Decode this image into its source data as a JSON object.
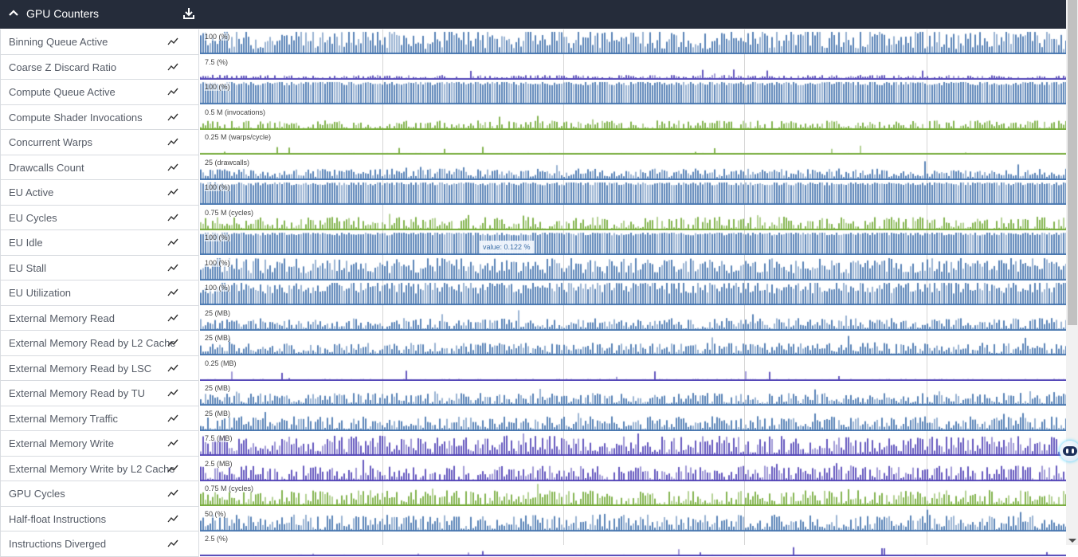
{
  "header": {
    "title": "GPU Counters",
    "collapse_icon": "chevron-up-icon",
    "download_icon": "download-icon"
  },
  "colors": {
    "blue": "#4a78b0",
    "purple": "#5548b8",
    "green": "#78ad3e",
    "header_bg": "#252c3a"
  },
  "tooltip": {
    "text": "value: 0.122 %"
  },
  "counters": [
    {
      "name": "Binning Queue Active",
      "scale": "100  (%)",
      "color": "blue",
      "level": 0.65,
      "var": 0.45
    },
    {
      "name": "Coarse Z Discard Ratio",
      "scale": "7.5  (%)",
      "color": "purple",
      "level": 0.08,
      "var": 0.1
    },
    {
      "name": "Compute Queue Active",
      "scale": "100  (%)",
      "color": "blue",
      "level": 0.95,
      "var": 0.1
    },
    {
      "name": "Compute Shader Invocations",
      "scale": "0.5 M (invocations)",
      "color": "green",
      "level": 0.2,
      "var": 0.2
    },
    {
      "name": "Concurrent Warps",
      "scale": "0.25 M (warps/cycle)",
      "color": "green",
      "level": 0.02,
      "var": 0.02
    },
    {
      "name": "Drawcalls Count",
      "scale": "25  (drawcalls)",
      "color": "blue",
      "level": 0.3,
      "var": 0.2
    },
    {
      "name": "EU Active",
      "scale": "100  (%)",
      "color": "blue",
      "level": 0.95,
      "var": 0.08
    },
    {
      "name": "EU Cycles",
      "scale": "0.75 M (cycles)",
      "color": "green",
      "level": 0.3,
      "var": 0.3
    },
    {
      "name": "EU Idle",
      "scale": "100  (%)",
      "color": "blue",
      "level": 0.95,
      "var": 0.08
    },
    {
      "name": "EU Stall",
      "scale": "100  (%)",
      "color": "blue",
      "level": 0.65,
      "var": 0.35
    },
    {
      "name": "EU Utilization",
      "scale": "100  (%)",
      "color": "blue",
      "level": 0.8,
      "var": 0.3
    },
    {
      "name": "External Memory Read",
      "scale": "25  (MB)",
      "color": "blue",
      "level": 0.3,
      "var": 0.25
    },
    {
      "name": "External Memory Read by L2 Cache",
      "scale": "25  (MB)",
      "color": "blue",
      "level": 0.3,
      "var": 0.25
    },
    {
      "name": "External Memory Read by LSC",
      "scale": "0.25  (MB)",
      "color": "purple",
      "level": 0.03,
      "var": 0.02
    },
    {
      "name": "External Memory Read by TU",
      "scale": "25  (MB)",
      "color": "blue",
      "level": 0.3,
      "var": 0.25
    },
    {
      "name": "External Memory Traffic",
      "scale": "25  (MB)",
      "color": "blue",
      "level": 0.35,
      "var": 0.3
    },
    {
      "name": "External Memory Write",
      "scale": "7.5  (MB)",
      "color": "purple",
      "level": 0.5,
      "var": 0.4
    },
    {
      "name": "External Memory Write by L2 Cache",
      "scale": "2.5  (MB)",
      "color": "purple",
      "level": 0.35,
      "var": 0.35
    },
    {
      "name": "GPU Cycles",
      "scale": "0.75 M (cycles)",
      "color": "green",
      "level": 0.35,
      "var": 0.35
    },
    {
      "name": "Half-float Instructions",
      "scale": "50  (%)",
      "color": "blue",
      "level": 0.4,
      "var": 0.35
    },
    {
      "name": "Instructions Diverged",
      "scale": "2.5  (%)",
      "color": "purple",
      "level": 0.02,
      "var": 0.02
    }
  ]
}
